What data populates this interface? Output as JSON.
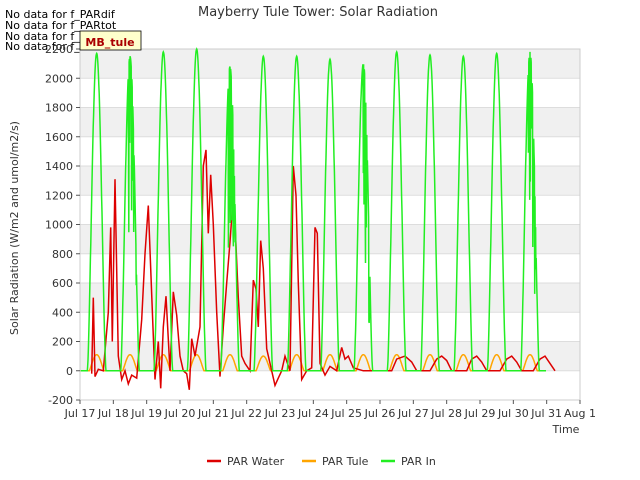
{
  "chart_data": {
    "type": "line",
    "title": "Mayberry Tule Tower: Solar Radiation",
    "xlabel": "Time",
    "ylabel": "Solar Radiation (W/m2 and umol/m2/s)",
    "ylim": [
      -200,
      2200
    ],
    "yticks": [
      -200,
      0,
      200,
      400,
      600,
      800,
      1000,
      1200,
      1400,
      1600,
      1800,
      2000,
      2200
    ],
    "xlim": [
      0,
      15
    ],
    "xticks": [
      0,
      1,
      2,
      3,
      4,
      5,
      6,
      7,
      8,
      9,
      10,
      11,
      12,
      13,
      14,
      15
    ],
    "xtick_labels": [
      "Jul 17",
      "Jul 18",
      "Jul 19",
      "Jul 20",
      "Jul 21",
      "Jul 22",
      "Jul 23",
      "Jul 24",
      "Jul 25",
      "Jul 26",
      "Jul 27",
      "Jul 28",
      "Jul 29",
      "Jul 30",
      "Jul 31",
      "Aug 1"
    ],
    "grid": true,
    "legend_position": "bottom",
    "no_data_messages": [
      "No data for f_PARdif",
      "No data for f_PARtot",
      "No data for f_PARdif",
      "No data for f_PARtot"
    ],
    "tooltip_label": "MB_tule",
    "series": [
      {
        "name": "PAR In",
        "color": "#22ee22",
        "daily_peaks": [
          2170,
          2150,
          2180,
          2200,
          2080,
          2150,
          2150,
          2130,
          2100,
          2180,
          2160,
          2150,
          2170,
          2180
        ],
        "noisy_days": [
          1,
          4,
          8,
          13
        ]
      },
      {
        "name": "PAR Water",
        "color": "#dd0000",
        "points": [
          [
            0.35,
            -20
          ],
          [
            0.4,
            500
          ],
          [
            0.45,
            -40
          ],
          [
            0.55,
            10
          ],
          [
            0.7,
            0
          ],
          [
            0.85,
            400
          ],
          [
            0.92,
            980
          ],
          [
            0.97,
            200
          ],
          [
            1.05,
            1310
          ],
          [
            1.15,
            100
          ],
          [
            1.25,
            -60
          ],
          [
            1.35,
            0
          ],
          [
            1.45,
            -90
          ],
          [
            1.55,
            -30
          ],
          [
            1.7,
            -50
          ],
          [
            1.85,
            350
          ],
          [
            1.95,
            800
          ],
          [
            2.05,
            1130
          ],
          [
            2.15,
            520
          ],
          [
            2.25,
            -60
          ],
          [
            2.35,
            200
          ],
          [
            2.42,
            -120
          ],
          [
            2.5,
            300
          ],
          [
            2.58,
            510
          ],
          [
            2.7,
            0
          ],
          [
            2.8,
            540
          ],
          [
            2.9,
            380
          ],
          [
            3.0,
            100
          ],
          [
            3.1,
            0
          ],
          [
            3.2,
            -20
          ],
          [
            3.28,
            -130
          ],
          [
            3.35,
            220
          ],
          [
            3.45,
            100
          ],
          [
            3.6,
            300
          ],
          [
            3.7,
            1400
          ],
          [
            3.78,
            1510
          ],
          [
            3.85,
            940
          ],
          [
            3.92,
            1340
          ],
          [
            4.0,
            1000
          ],
          [
            4.1,
            400
          ],
          [
            4.2,
            -40
          ],
          [
            4.3,
            300
          ],
          [
            4.4,
            600
          ],
          [
            4.5,
            880
          ],
          [
            4.58,
            1140
          ],
          [
            4.65,
            1010
          ],
          [
            4.75,
            500
          ],
          [
            4.85,
            100
          ],
          [
            4.95,
            50
          ],
          [
            5.1,
            0
          ],
          [
            5.2,
            620
          ],
          [
            5.28,
            560
          ],
          [
            5.35,
            300
          ],
          [
            5.42,
            890
          ],
          [
            5.5,
            700
          ],
          [
            5.6,
            150
          ],
          [
            5.75,
            0
          ],
          [
            5.85,
            -100
          ],
          [
            5.95,
            -50
          ],
          [
            6.05,
            0
          ],
          [
            6.15,
            100
          ],
          [
            6.3,
            0
          ],
          [
            6.4,
            1400
          ],
          [
            6.48,
            1200
          ],
          [
            6.55,
            600
          ],
          [
            6.65,
            -60
          ],
          [
            6.8,
            0
          ],
          [
            6.95,
            20
          ],
          [
            7.05,
            980
          ],
          [
            7.12,
            940
          ],
          [
            7.2,
            50
          ],
          [
            7.35,
            -30
          ],
          [
            7.5,
            30
          ],
          [
            7.7,
            0
          ],
          [
            7.85,
            160
          ],
          [
            7.95,
            80
          ],
          [
            8.05,
            100
          ],
          [
            8.2,
            20
          ],
          [
            8.5,
            0
          ],
          [
            9.0,
            0
          ],
          [
            9.35,
            0
          ],
          [
            9.5,
            80
          ],
          [
            9.75,
            100
          ],
          [
            9.95,
            60
          ],
          [
            10.1,
            0
          ],
          [
            10.5,
            0
          ],
          [
            10.7,
            80
          ],
          [
            10.85,
            100
          ],
          [
            11.0,
            70
          ],
          [
            11.15,
            0
          ],
          [
            11.6,
            0
          ],
          [
            11.75,
            80
          ],
          [
            11.9,
            100
          ],
          [
            12.05,
            60
          ],
          [
            12.2,
            0
          ],
          [
            12.6,
            0
          ],
          [
            12.8,
            80
          ],
          [
            12.95,
            100
          ],
          [
            13.1,
            60
          ],
          [
            13.25,
            0
          ],
          [
            13.6,
            0
          ],
          [
            13.8,
            80
          ],
          [
            13.95,
            100
          ],
          [
            14.1,
            50
          ],
          [
            14.25,
            0
          ]
        ]
      },
      {
        "name": "PAR Tule",
        "color": "#ffa500",
        "daily_peaks": [
          110,
          110,
          110,
          110,
          110,
          100,
          110,
          110,
          110,
          110,
          110,
          110,
          110,
          110
        ]
      }
    ]
  }
}
